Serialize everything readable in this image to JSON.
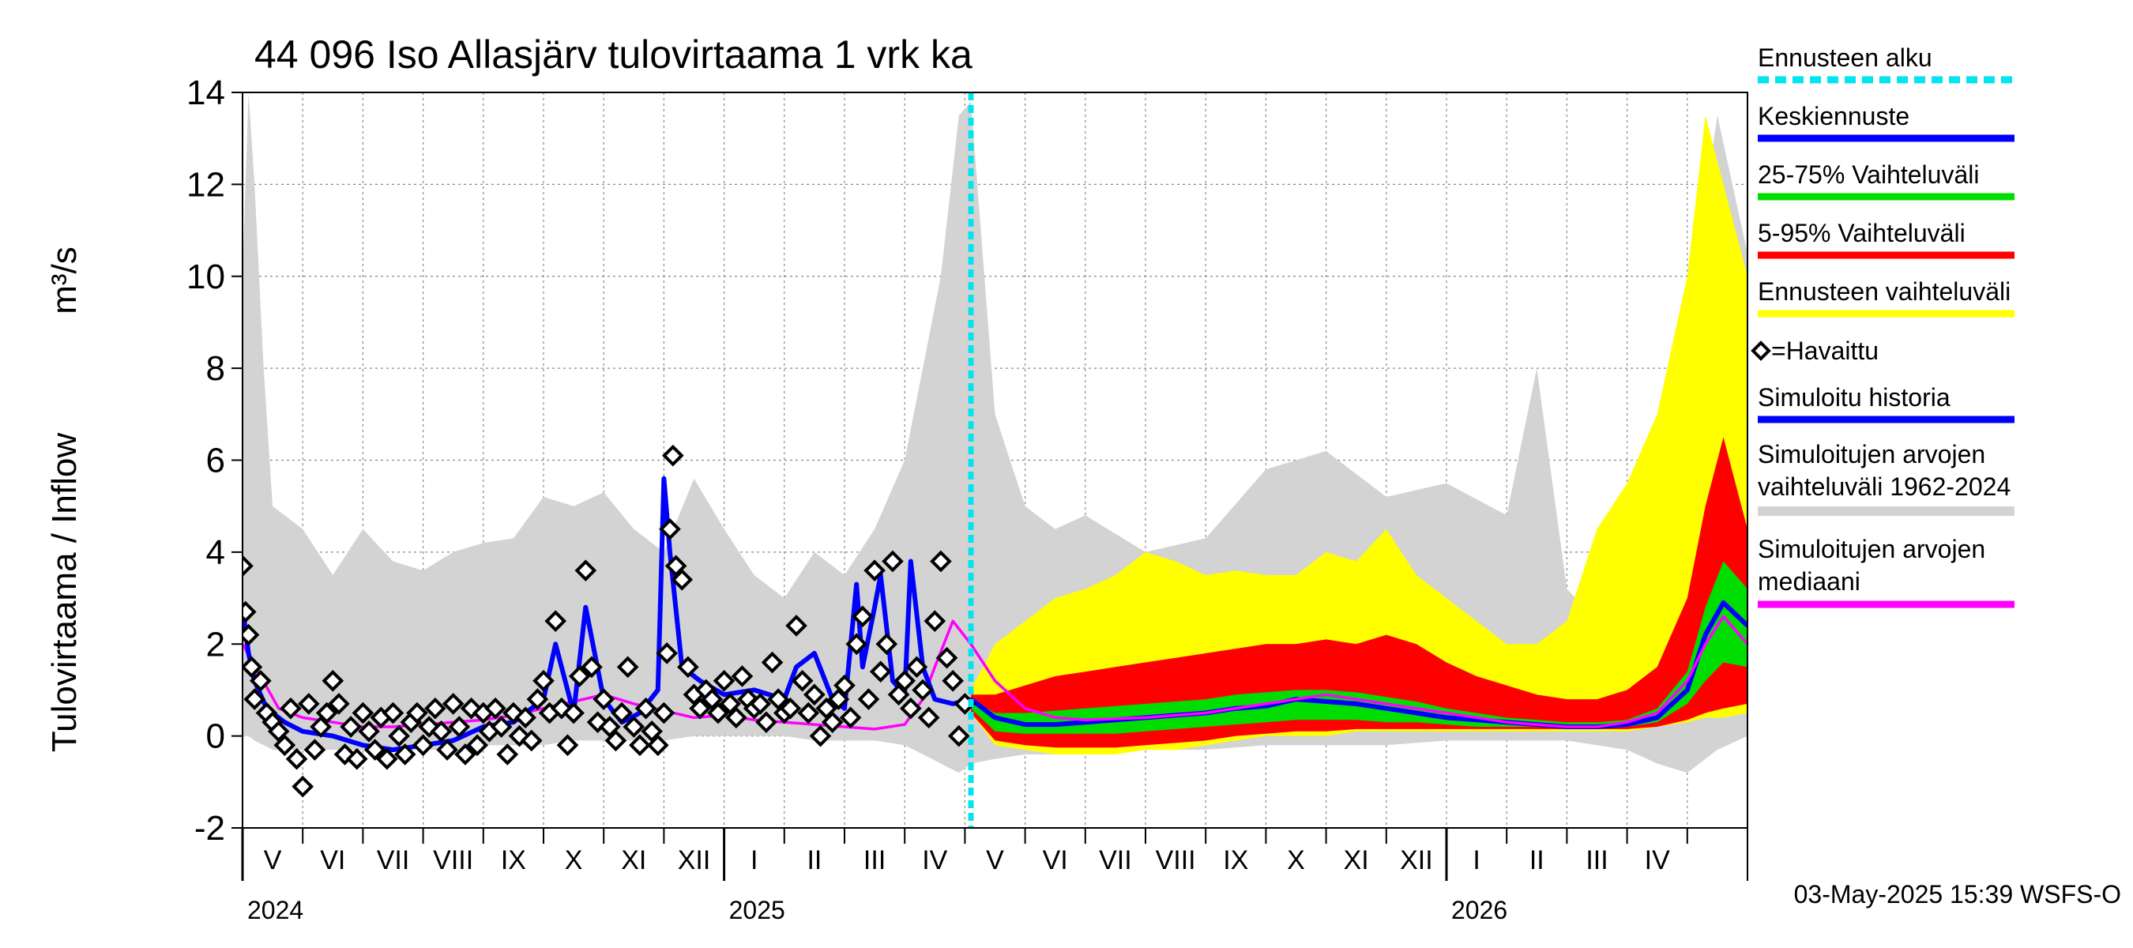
{
  "chart_data": {
    "type": "line",
    "title": "44 096 Iso Allasjärv tulovirtaama 1 vrk ka",
    "ylabel": "Tulovirtaama / Inflow",
    "yunit": "m³/s",
    "ylim": [
      -2,
      14
    ],
    "yticks": [
      -2,
      0,
      2,
      4,
      6,
      8,
      10,
      12,
      14
    ],
    "x_range_months": [
      0,
      25
    ],
    "forecast_start_month": 12.1,
    "months": [
      {
        "label": "V",
        "m": 0.5
      },
      {
        "label": "VI",
        "m": 1.5
      },
      {
        "label": "VII",
        "m": 2.5
      },
      {
        "label": "VIII",
        "m": 3.5
      },
      {
        "label": "IX",
        "m": 4.5
      },
      {
        "label": "X",
        "m": 5.5
      },
      {
        "label": "XI",
        "m": 6.5
      },
      {
        "label": "XII",
        "m": 7.5
      },
      {
        "label": "I",
        "m": 8.5
      },
      {
        "label": "II",
        "m": 9.5
      },
      {
        "label": "III",
        "m": 10.5
      },
      {
        "label": "IV",
        "m": 11.5
      },
      {
        "label": "V",
        "m": 12.5
      },
      {
        "label": "VI",
        "m": 13.5
      },
      {
        "label": "VII",
        "m": 14.5
      },
      {
        "label": "VIII",
        "m": 15.5
      },
      {
        "label": "IX",
        "m": 16.5
      },
      {
        "label": "X",
        "m": 17.5
      },
      {
        "label": "XI",
        "m": 18.5
      },
      {
        "label": "XII",
        "m": 19.5
      },
      {
        "label": "I",
        "m": 20.5
      },
      {
        "label": "II",
        "m": 21.5
      },
      {
        "label": "III",
        "m": 22.5
      },
      {
        "label": "IV",
        "m": 23.5
      }
    ],
    "years": [
      {
        "label": "2024",
        "m": 0
      },
      {
        "label": "2025",
        "m": 8
      },
      {
        "label": "2026",
        "m": 20
      }
    ],
    "series": [
      {
        "name": "Simuloitujen arvojen vaihteluväli 1962-2024",
        "color": "#d3d3d3",
        "x": [
          0,
          0.1,
          0.2,
          0.35,
          0.5,
          1,
          1.5,
          2,
          2.5,
          3,
          3.5,
          4,
          4.5,
          5,
          5.5,
          6,
          6.5,
          7,
          7.5,
          8,
          8.5,
          9,
          9.5,
          10,
          10.5,
          11,
          11.3,
          11.6,
          11.9,
          12.1,
          12.5,
          13,
          13.5,
          14,
          15,
          16,
          17,
          18,
          19,
          20,
          21,
          21.5,
          22,
          22.5,
          23,
          23.5,
          24,
          24.5,
          25
        ],
        "upper": [
          10,
          14,
          12,
          8,
          5,
          4.5,
          3.5,
          4.5,
          3.8,
          3.6,
          4,
          4.2,
          4.3,
          5.2,
          5,
          5.3,
          4.5,
          4,
          5.6,
          4.5,
          3.5,
          3,
          4,
          3.5,
          4.5,
          6,
          8,
          10,
          13.5,
          13.8,
          7,
          5,
          4.5,
          4.8,
          4,
          4.3,
          5.8,
          6.2,
          5.2,
          5.5,
          4.8,
          8,
          3.2,
          2.5,
          3,
          4,
          9,
          13.5,
          10.5
        ],
        "lower": [
          0,
          0,
          -0.1,
          -0.2,
          -0.3,
          -0.3,
          -0.3,
          -0.3,
          -0.3,
          -0.3,
          -0.3,
          -0.2,
          -0.2,
          -0.2,
          -0.1,
          -0.1,
          -0.1,
          -0.1,
          0,
          0,
          0,
          0,
          -0.1,
          -0.1,
          -0.1,
          -0.2,
          -0.4,
          -0.6,
          -0.8,
          -0.6,
          -0.5,
          -0.4,
          -0.4,
          -0.3,
          -0.3,
          -0.3,
          -0.2,
          -0.2,
          -0.2,
          -0.1,
          -0.1,
          -0.1,
          -0.1,
          -0.2,
          -0.3,
          -0.6,
          -0.8,
          -0.3,
          0
        ]
      },
      {
        "name": "Ennusteen vaihteluväli",
        "color": "#ffff00",
        "x": [
          12.1,
          12.5,
          13,
          13.5,
          14,
          14.5,
          15,
          15.5,
          16,
          16.5,
          17,
          17.5,
          18,
          18.5,
          19,
          19.5,
          20,
          20.5,
          21,
          21.5,
          22,
          22.5,
          23,
          23.5,
          24,
          24.3,
          24.6,
          25
        ],
        "upper": [
          1,
          2,
          2.5,
          3,
          3.2,
          3.5,
          4,
          3.8,
          3.5,
          3.6,
          3.5,
          3.5,
          4,
          3.8,
          4.5,
          3.5,
          3,
          2.5,
          2,
          2,
          2.5,
          4.5,
          5.5,
          7,
          10,
          13.5,
          12,
          10
        ],
        "lower": [
          0.5,
          -0.2,
          -0.3,
          -0.4,
          -0.4,
          -0.4,
          -0.3,
          -0.3,
          -0.2,
          -0.1,
          0,
          0,
          0,
          0.1,
          0.1,
          0.1,
          0.1,
          0.1,
          0.1,
          0.1,
          0.1,
          0.1,
          0.1,
          0.2,
          0.3,
          0.4,
          0.4,
          0.5
        ]
      },
      {
        "name": "5-95% Vaihteluväli",
        "color": "#ff0000",
        "x": [
          12.1,
          12.5,
          13,
          13.5,
          14,
          14.5,
          15,
          15.5,
          16,
          16.5,
          17,
          17.5,
          18,
          18.5,
          19,
          19.5,
          20,
          20.5,
          21,
          21.5,
          22,
          22.5,
          23,
          23.5,
          24,
          24.3,
          24.6,
          25
        ],
        "upper": [
          0.9,
          0.9,
          1.1,
          1.3,
          1.4,
          1.5,
          1.6,
          1.7,
          1.8,
          1.9,
          2.0,
          2.0,
          2.1,
          2.0,
          2.2,
          2.0,
          1.6,
          1.3,
          1.1,
          0.9,
          0.8,
          0.8,
          1.0,
          1.5,
          3.0,
          5.0,
          6.5,
          4.5
        ],
        "lower": [
          0.5,
          -0.1,
          -0.2,
          -0.25,
          -0.25,
          -0.25,
          -0.2,
          -0.15,
          -0.1,
          0,
          0.05,
          0.1,
          0.1,
          0.15,
          0.15,
          0.15,
          0.15,
          0.15,
          0.15,
          0.15,
          0.15,
          0.15,
          0.15,
          0.2,
          0.35,
          0.5,
          0.6,
          0.7
        ]
      },
      {
        "name": "25-75% Vaihteluväli",
        "color": "#00dd00",
        "x": [
          12.1,
          12.5,
          13,
          13.5,
          14,
          14.5,
          15,
          15.5,
          16,
          16.5,
          17,
          17.5,
          18,
          18.5,
          19,
          19.5,
          20,
          20.5,
          21,
          21.5,
          22,
          22.5,
          23,
          23.5,
          24,
          24.3,
          24.6,
          25
        ],
        "upper": [
          0.8,
          0.5,
          0.5,
          0.55,
          0.6,
          0.65,
          0.7,
          0.75,
          0.8,
          0.9,
          0.95,
          1.0,
          1.0,
          0.95,
          0.85,
          0.75,
          0.6,
          0.5,
          0.4,
          0.35,
          0.3,
          0.3,
          0.35,
          0.6,
          1.4,
          2.8,
          3.8,
          3.2
        ],
        "lower": [
          0.6,
          0.1,
          0.05,
          0.05,
          0.05,
          0.05,
          0.1,
          0.15,
          0.2,
          0.25,
          0.3,
          0.35,
          0.35,
          0.35,
          0.3,
          0.3,
          0.25,
          0.2,
          0.2,
          0.2,
          0.2,
          0.2,
          0.2,
          0.3,
          0.7,
          1.2,
          1.6,
          1.5
        ]
      },
      {
        "name": "Keskiennuste",
        "color": "#0000ff",
        "x": [
          12.1,
          12.5,
          13,
          13.5,
          14,
          14.5,
          15,
          15.5,
          16,
          16.5,
          17,
          17.5,
          18,
          18.5,
          19,
          19.5,
          20,
          20.5,
          21,
          21.5,
          22,
          22.5,
          23,
          23.5,
          24,
          24.3,
          24.6,
          25
        ],
        "values": [
          0.8,
          0.4,
          0.25,
          0.25,
          0.3,
          0.35,
          0.4,
          0.45,
          0.5,
          0.6,
          0.65,
          0.8,
          0.75,
          0.7,
          0.6,
          0.5,
          0.4,
          0.35,
          0.3,
          0.25,
          0.2,
          0.2,
          0.25,
          0.4,
          1.0,
          2.2,
          2.9,
          2.4
        ]
      },
      {
        "name": "Simuloitujen arvojen mediaani",
        "color": "#ff00ff",
        "x": [
          0,
          0.3,
          0.6,
          1,
          1.5,
          2,
          2.5,
          3,
          3.5,
          4,
          4.5,
          5,
          5.5,
          6,
          6.5,
          7,
          7.5,
          8,
          8.5,
          9,
          9.5,
          10,
          10.5,
          11,
          11.3,
          11.5,
          11.8,
          12.1,
          12.5,
          13,
          13.5,
          14,
          15,
          16,
          17,
          18,
          19,
          20,
          21,
          22,
          22.5,
          23,
          23.5,
          24,
          24.3,
          24.6,
          25
        ],
        "values": [
          2,
          1.3,
          0.6,
          0.4,
          0.3,
          0.2,
          0.2,
          0.25,
          0.3,
          0.35,
          0.45,
          0.6,
          0.75,
          0.9,
          0.7,
          0.55,
          0.4,
          0.45,
          0.35,
          0.3,
          0.25,
          0.2,
          0.15,
          0.25,
          0.8,
          1.5,
          2.5,
          2.0,
          1.2,
          0.6,
          0.4,
          0.35,
          0.4,
          0.5,
          0.7,
          0.9,
          0.7,
          0.5,
          0.3,
          0.2,
          0.2,
          0.3,
          0.5,
          1.2,
          2.0,
          2.6,
          2.0
        ]
      },
      {
        "name": "Simuloitu historia",
        "color": "#0000ff",
        "x": [
          0,
          0.1,
          0.2,
          0.4,
          0.7,
          1,
          1.5,
          2,
          2.5,
          3,
          3.5,
          4,
          4.5,
          5,
          5.2,
          5.5,
          5.7,
          6,
          6.3,
          6.6,
          6.9,
          7,
          7.1,
          7.3,
          7.6,
          8,
          8.5,
          9,
          9.2,
          9.5,
          9.8,
          10,
          10.2,
          10.3,
          10.5,
          10.6,
          10.8,
          11,
          11.1,
          11.3,
          11.5,
          11.8,
          12.1
        ],
        "values": [
          2.8,
          1.8,
          1.2,
          0.6,
          0.3,
          0.1,
          0,
          -0.2,
          -0.3,
          -0.2,
          -0.1,
          0.2,
          0.3,
          0.8,
          2,
          0.5,
          2.8,
          0.8,
          0.3,
          0.5,
          1,
          5.6,
          4,
          1.5,
          1.2,
          0.9,
          1,
          0.8,
          1.5,
          1.8,
          0.8,
          0.6,
          3.3,
          1.5,
          2.8,
          3.5,
          1.2,
          0.9,
          3.8,
          1.5,
          0.8,
          0.7,
          0.8
        ]
      }
    ],
    "observed": {
      "name": "=Havaittu",
      "marker": "diamond",
      "x": [
        0,
        0.05,
        0.1,
        0.15,
        0.2,
        0.3,
        0.4,
        0.5,
        0.6,
        0.7,
        0.8,
        0.9,
        1.0,
        1.1,
        1.2,
        1.3,
        1.4,
        1.5,
        1.6,
        1.7,
        1.8,
        1.9,
        2.0,
        2.1,
        2.2,
        2.3,
        2.4,
        2.5,
        2.6,
        2.7,
        2.8,
        2.9,
        3.0,
        3.1,
        3.2,
        3.3,
        3.4,
        3.5,
        3.6,
        3.7,
        3.8,
        3.9,
        4.0,
        4.1,
        4.2,
        4.3,
        4.4,
        4.5,
        4.6,
        4.7,
        4.8,
        4.9,
        5.0,
        5.1,
        5.2,
        5.3,
        5.4,
        5.5,
        5.6,
        5.7,
        5.8,
        5.9,
        6.0,
        6.1,
        6.2,
        6.3,
        6.4,
        6.5,
        6.6,
        6.7,
        6.8,
        6.9,
        7.0,
        7.05,
        7.1,
        7.15,
        7.2,
        7.3,
        7.4,
        7.5,
        7.6,
        7.7,
        7.8,
        7.9,
        8.0,
        8.1,
        8.2,
        8.3,
        8.4,
        8.5,
        8.6,
        8.7,
        8.8,
        8.9,
        9.0,
        9.1,
        9.2,
        9.3,
        9.4,
        9.5,
        9.6,
        9.7,
        9.8,
        9.9,
        10.0,
        10.1,
        10.2,
        10.3,
        10.4,
        10.5,
        10.6,
        10.7,
        10.8,
        10.9,
        11.0,
        11.1,
        11.2,
        11.3,
        11.4,
        11.5,
        11.6,
        11.7,
        11.8,
        11.9,
        12.0
      ],
      "values": [
        3.7,
        2.7,
        2.2,
        1.5,
        0.8,
        1.2,
        0.5,
        0.3,
        0.1,
        -0.2,
        0.6,
        -0.5,
        -1.1,
        0.7,
        -0.3,
        0.2,
        0.5,
        1.2,
        0.7,
        -0.4,
        0.2,
        -0.5,
        0.5,
        0.1,
        -0.3,
        0.4,
        -0.5,
        0.5,
        0.0,
        -0.4,
        0.3,
        0.5,
        -0.2,
        0.2,
        0.6,
        0.1,
        -0.3,
        0.7,
        0.2,
        -0.4,
        0.6,
        -0.2,
        0.5,
        0.1,
        0.6,
        0.2,
        -0.4,
        0.5,
        0.0,
        0.4,
        -0.1,
        0.8,
        1.2,
        0.5,
        2.5,
        0.6,
        -0.2,
        0.5,
        1.3,
        3.6,
        1.5,
        0.3,
        0.8,
        0.2,
        -0.1,
        0.5,
        1.5,
        0.2,
        -0.2,
        0.6,
        0.1,
        -0.2,
        0.5,
        1.8,
        4.5,
        6.1,
        3.7,
        3.4,
        1.5,
        0.9,
        0.6,
        1.0,
        0.8,
        0.5,
        1.2,
        0.7,
        0.4,
        1.3,
        0.8,
        0.6,
        0.7,
        0.3,
        1.6,
        0.8,
        0.5,
        0.6,
        2.4,
        1.2,
        0.5,
        0.9,
        0.0,
        0.6,
        0.3,
        0.8,
        1.1,
        0.4,
        2.0,
        2.6,
        0.8,
        3.6,
        1.4,
        2.0,
        3.8,
        0.9,
        1.2,
        0.6,
        1.5,
        1.0,
        0.4,
        2.5,
        3.8,
        1.7,
        1.2,
        0.0,
        0.7
      ]
    }
  },
  "legend": {
    "items": [
      {
        "key": "forecast_start",
        "label": "Ennusteen alku",
        "color": "#00e5ee",
        "style": "dashed"
      },
      {
        "key": "mean_forecast",
        "label": "Keskiennuste",
        "color": "#0000ff",
        "style": "solid"
      },
      {
        "key": "p25_75",
        "label": "25-75% Vaihteluväli",
        "color": "#00dd00",
        "style": "solid"
      },
      {
        "key": "p5_95",
        "label": "5-95% Vaihteluväli",
        "color": "#ff0000",
        "style": "solid"
      },
      {
        "key": "forecast_range",
        "label": "Ennusteen vaihteluväli",
        "color": "#ffff00",
        "style": "solid"
      },
      {
        "key": "observed",
        "label": "=Havaittu",
        "color": "#000000",
        "style": "diamond"
      },
      {
        "key": "sim_history",
        "label": "Simuloitu historia",
        "color": "#0000ff",
        "style": "solid"
      },
      {
        "key": "sim_range",
        "label_line1": "Simuloitujen arvojen",
        "label_line2": "vaihteluväli 1962-2024",
        "color": "#d3d3d3",
        "style": "solid"
      },
      {
        "key": "sim_median",
        "label_line1": "Simuloitujen arvojen",
        "label_line2": "mediaani",
        "color": "#ff00ff",
        "style": "solid"
      }
    ]
  },
  "footer": {
    "timestamp": "03-May-2025 15:39 WSFS-O"
  }
}
